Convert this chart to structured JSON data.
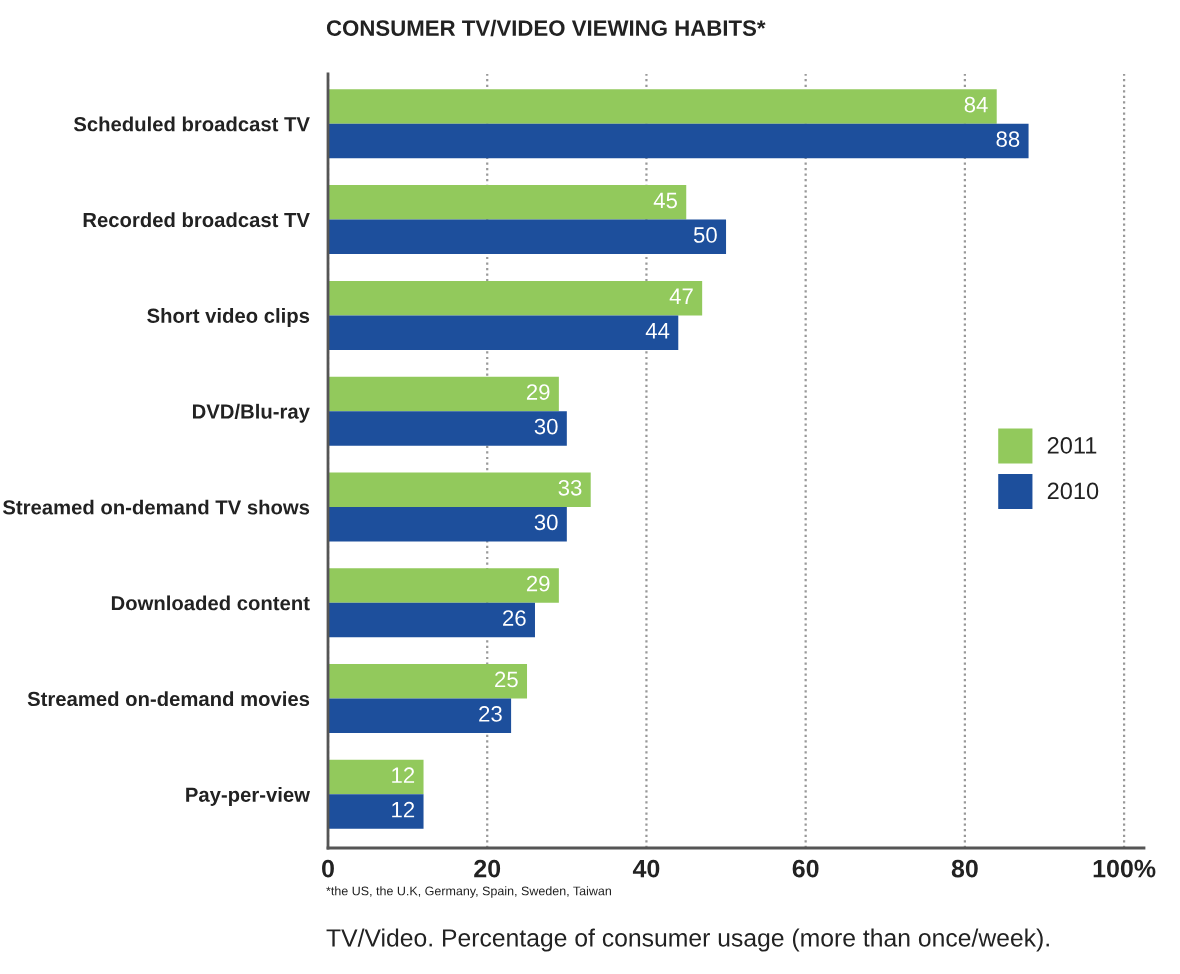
{
  "chart_data": {
    "type": "bar",
    "orientation": "horizontal",
    "title": "CONSUMER TV/VIDEO VIEWING HABITS*",
    "categories": [
      "Scheduled broadcast TV",
      "Recorded broadcast TV",
      "Short video clips",
      "DVD/Blu-ray",
      "Streamed on-demand TV shows",
      "Downloaded content",
      "Streamed on-demand movies",
      "Pay-per-view"
    ],
    "series": [
      {
        "name": "2011",
        "color": "#92c95c",
        "values": [
          84,
          45,
          47,
          29,
          33,
          29,
          25,
          12
        ]
      },
      {
        "name": "2010",
        "color": "#1d4f9c",
        "values": [
          88,
          50,
          44,
          30,
          30,
          26,
          23,
          12
        ]
      }
    ],
    "xlim": [
      0,
      102.5
    ],
    "xticks": [
      0,
      20,
      40,
      60,
      80,
      {
        "value": 100,
        "label": "100%"
      }
    ],
    "grid": "x",
    "legend": "right",
    "data_labels": true,
    "annotations": [
      "*the US, the U.K, Germany, Spain, Sweden, Taiwan",
      "TV/Video. Percentage of consumer usage (more than once/week)."
    ]
  }
}
